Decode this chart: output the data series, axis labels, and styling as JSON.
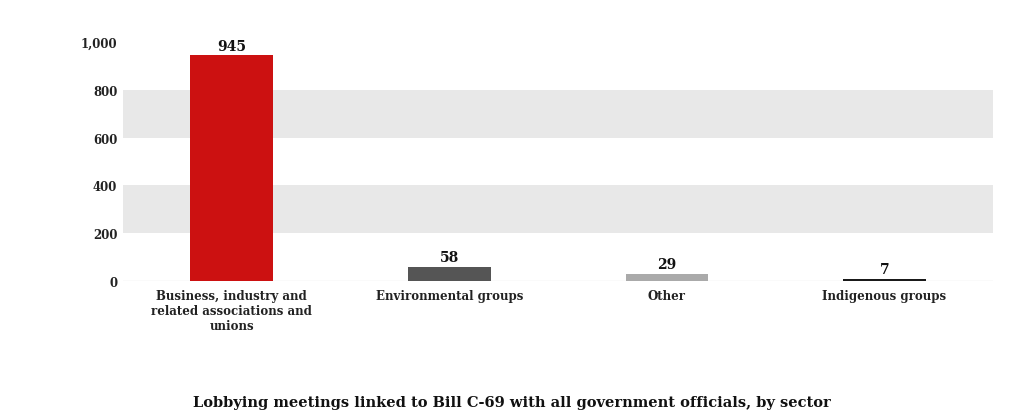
{
  "categories": [
    "Business, industry and\nrelated associations and\nunions",
    "Environmental groups",
    "Other",
    "Indigenous groups"
  ],
  "values": [
    945,
    58,
    29,
    7
  ],
  "bar_colors": [
    "#cc1111",
    "#555555",
    "#aaaaaa",
    "#1a1a1a"
  ],
  "bar_labels": [
    "945",
    "58",
    "29",
    "7"
  ],
  "yticks": [
    0,
    200,
    400,
    600,
    800,
    1000
  ],
  "ytick_labels": [
    "0",
    "200",
    "400",
    "600",
    "800",
    "1,000"
  ],
  "ylim": [
    0,
    1060
  ],
  "title": "Lobbying meetings linked to Bill C-69 with all government officials, by sector",
  "title_fontsize": 10.5,
  "background_color": "#ffffff",
  "band_color": "#e8e8e8",
  "label_fontsize": 11,
  "tick_label_fontsize": 8.5,
  "bar_label_fontsize": 10,
  "bar_width": 0.38
}
